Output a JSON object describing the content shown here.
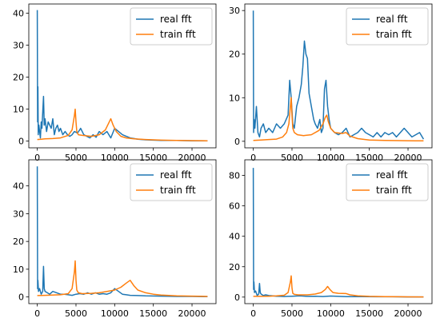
{
  "chart_data": [
    {
      "type": "line",
      "xlim": [
        -1100,
        23100
      ],
      "ylim": [
        -2.1,
        42.9
      ],
      "xticks": [
        0,
        5000,
        10000,
        15000,
        20000
      ],
      "yticks": [
        0,
        10,
        20,
        30,
        40
      ],
      "legend": "top-right",
      "series": [
        {
          "name": "real fft",
          "color": "#1f77b4",
          "x": [
            0,
            40,
            80,
            120,
            200,
            300,
            400,
            500,
            600,
            700,
            800,
            900,
            1000,
            1200,
            1400,
            1600,
            1800,
            2000,
            2200,
            2400,
            2600,
            2800,
            3000,
            3300,
            3600,
            3900,
            4200,
            4500,
            4800,
            5200,
            5600,
            6000,
            6400,
            6800,
            7200,
            7600,
            8000,
            8500,
            9000,
            9500,
            10000,
            10500,
            11000,
            11500,
            12000,
            12500,
            13000,
            14000,
            15000,
            16000,
            18000,
            20000,
            22000
          ],
          "y": [
            41,
            6,
            17,
            2,
            5,
            3,
            1,
            6,
            4,
            9,
            14,
            5,
            7,
            3,
            6,
            5,
            4,
            7,
            2,
            4,
            5,
            3,
            4,
            2,
            3,
            2,
            1.5,
            2,
            3,
            2.5,
            4,
            2,
            1.5,
            1,
            2,
            1.2,
            3,
            2,
            3,
            1,
            4,
            3,
            2,
            1.5,
            1,
            0.8,
            0.6,
            0.4,
            0.3,
            0.2,
            0.2,
            0.1,
            0.1
          ]
        },
        {
          "name": "train fft",
          "color": "#ff7f0e",
          "x": [
            0,
            500,
            1000,
            2000,
            3000,
            4000,
            4500,
            4800,
            4900,
            5000,
            5100,
            5300,
            5800,
            7000,
            8000,
            8800,
            9200,
            9500,
            9800,
            10200,
            10800,
            11500,
            12500,
            14000,
            16000,
            18000,
            20000,
            22000
          ],
          "y": [
            0.5,
            0.6,
            0.7,
            0.8,
            1,
            1.8,
            3.5,
            8,
            10,
            6,
            3,
            2,
            1.8,
            1.5,
            2,
            3.5,
            5.5,
            7,
            5,
            3,
            1.5,
            1,
            0.7,
            0.5,
            0.3,
            0.2,
            0.15,
            0.1
          ]
        }
      ]
    },
    {
      "type": "line",
      "xlim": [
        -1100,
        23100
      ],
      "ylim": [
        -1.5,
        31.5
      ],
      "xticks": [
        0,
        5000,
        10000,
        15000,
        20000
      ],
      "yticks": [
        0,
        10,
        20,
        30
      ],
      "legend": "top-right",
      "series": [
        {
          "name": "real fft",
          "color": "#1f77b4",
          "x": [
            0,
            40,
            100,
            200,
            400,
            600,
            800,
            1000,
            1300,
            1600,
            2000,
            2500,
            3000,
            3500,
            4000,
            4500,
            4700,
            4900,
            5100,
            5300,
            5600,
            5900,
            6200,
            6400,
            6600,
            6800,
            7000,
            7200,
            7500,
            7800,
            8000,
            8300,
            8600,
            8800,
            9000,
            9200,
            9400,
            9600,
            9800,
            10000,
            10500,
            11000,
            11500,
            12000,
            12500,
            13000,
            13500,
            14000,
            14500,
            15000,
            15500,
            16000,
            16500,
            17000,
            17500,
            18000,
            18500,
            19000,
            19500,
            20000,
            20500,
            21000,
            21500,
            22000
          ],
          "y": [
            30,
            2,
            5,
            3,
            8,
            2,
            1,
            3,
            4,
            2,
            3,
            2,
            4,
            3,
            4,
            6,
            14,
            10,
            4,
            3,
            8,
            10,
            13,
            17,
            23,
            20,
            19,
            11,
            8,
            5,
            4,
            3,
            5,
            2,
            3,
            12,
            14,
            8,
            5,
            3,
            2,
            1.5,
            2,
            3,
            1,
            1.5,
            2,
            3,
            2,
            1.5,
            1,
            2,
            1,
            2,
            1.5,
            2,
            1,
            2,
            3,
            2,
            1,
            1.5,
            2,
            0.5
          ]
        },
        {
          "name": "train fft",
          "color": "#ff7f0e",
          "x": [
            0,
            1000,
            2000,
            3000,
            3800,
            4300,
            4600,
            4800,
            4900,
            5000,
            5100,
            5300,
            5700,
            6500,
            7500,
            8500,
            9000,
            9300,
            9500,
            9700,
            10000,
            10500,
            11500,
            12000,
            12500,
            13500,
            15000,
            17000,
            19000,
            21000,
            22000
          ],
          "y": [
            0.2,
            0.3,
            0.4,
            0.5,
            1,
            2,
            4,
            8,
            10,
            6,
            3,
            2,
            1.5,
            1.3,
            1.5,
            2.5,
            4,
            5.5,
            6,
            4.5,
            3,
            2,
            1.8,
            2,
            1.2,
            0.6,
            0.3,
            0.2,
            0.15,
            0.1,
            0.1
          ]
        }
      ]
    },
    {
      "type": "line",
      "xlim": [
        -1100,
        23100
      ],
      "ylim": [
        -2.4,
        49.4
      ],
      "xticks": [
        0,
        5000,
        10000,
        15000,
        20000
      ],
      "yticks": [
        0,
        10,
        20,
        30,
        40
      ],
      "legend": "top-right",
      "series": [
        {
          "name": "real fft",
          "color": "#1f77b4",
          "x": [
            0,
            40,
            80,
            150,
            300,
            500,
            700,
            800,
            900,
            1000,
            1300,
            1600,
            2000,
            2500,
            3000,
            3500,
            4000,
            4500,
            5000,
            5500,
            6000,
            6500,
            7000,
            7500,
            8000,
            8500,
            9000,
            9500,
            10000,
            10500,
            11000,
            11500,
            12000,
            13000,
            14000,
            16000,
            18000,
            20000,
            22000
          ],
          "y": [
            47,
            3,
            6,
            2,
            3,
            1,
            2,
            11,
            3,
            2,
            1.5,
            1,
            2,
            1.5,
            1,
            1,
            0.8,
            0.6,
            1,
            1.2,
            1,
            1.5,
            1,
            1.5,
            1,
            1.2,
            1,
            1.5,
            3,
            2,
            1,
            0.8,
            0.6,
            0.5,
            0.4,
            0.3,
            0.2,
            0.2,
            0.1
          ]
        },
        {
          "name": "train fft",
          "color": "#ff7f0e",
          "x": [
            0,
            1000,
            2000,
            3000,
            4000,
            4500,
            4800,
            4900,
            5000,
            5100,
            5300,
            5800,
            7000,
            8000,
            9000,
            10000,
            10800,
            11500,
            12000,
            12500,
            13000,
            14000,
            15000,
            16000,
            18000,
            20000,
            22000
          ],
          "y": [
            0.5,
            0.6,
            0.7,
            0.8,
            1.2,
            3,
            9,
            13,
            6,
            2.5,
            1.5,
            1.2,
            1.3,
            1.5,
            2,
            2.5,
            3.5,
            5,
            6,
            4,
            2.5,
            1.5,
            1,
            0.7,
            0.4,
            0.3,
            0.2
          ]
        }
      ]
    },
    {
      "type": "line",
      "xlim": [
        -1100,
        23100
      ],
      "ylim": [
        -4.3,
        90.3
      ],
      "xticks": [
        0,
        5000,
        10000,
        15000,
        20000
      ],
      "yticks": [
        0,
        20,
        40,
        60,
        80
      ],
      "legend": "top-right",
      "series": [
        {
          "name": "real fft",
          "color": "#1f77b4",
          "x": [
            0,
            40,
            80,
            150,
            300,
            500,
            700,
            800,
            900,
            1000,
            1300,
            1600,
            2000,
            2500,
            3000,
            3500,
            4000,
            4500,
            5000,
            6000,
            7000,
            8000,
            9000,
            10000,
            11000,
            12000,
            14000,
            16000,
            18000,
            20000,
            22000
          ],
          "y": [
            85,
            5,
            10,
            3,
            4,
            1,
            2,
            9,
            3,
            2,
            1,
            1.5,
            1,
            0.8,
            0.6,
            0.5,
            0.4,
            0.5,
            0.6,
            0.8,
            0.5,
            0.6,
            0.4,
            0.7,
            0.5,
            0.3,
            0.3,
            0.2,
            0.2,
            0.1,
            0.1
          ]
        },
        {
          "name": "train fft",
          "color": "#ff7f0e",
          "x": [
            0,
            1000,
            2000,
            3000,
            4000,
            4500,
            4800,
            4900,
            5000,
            5100,
            5300,
            5800,
            7000,
            8000,
            8800,
            9300,
            9600,
            9900,
            10300,
            11000,
            12000,
            12500,
            13500,
            15000,
            17000,
            19000,
            22000
          ],
          "y": [
            0.5,
            0.5,
            0.6,
            0.8,
            1.2,
            3,
            10,
            14,
            6,
            2.5,
            1.8,
            1.5,
            1.5,
            2,
            3,
            5,
            7,
            5,
            3,
            2.5,
            2.3,
            1.5,
            0.8,
            0.5,
            0.3,
            0.2,
            0.1
          ]
        }
      ]
    }
  ]
}
